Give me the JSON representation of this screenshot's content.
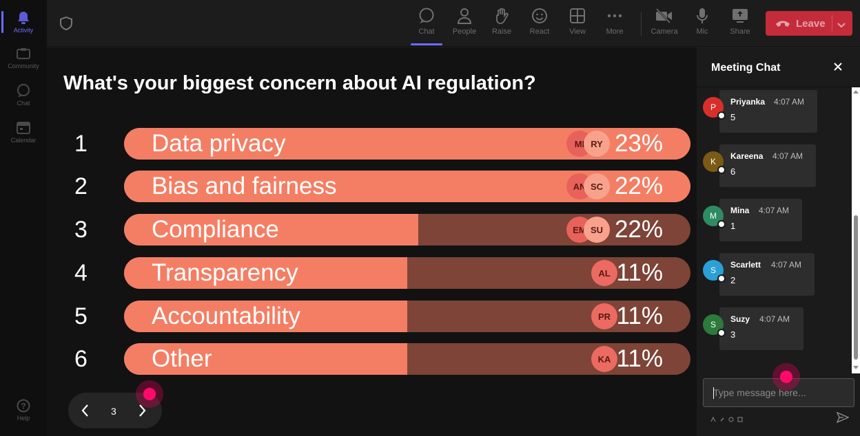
{
  "rail": {
    "items": [
      {
        "label": "Activity",
        "icon": "bell-icon",
        "active": true
      },
      {
        "label": "Community",
        "icon": "community-icon",
        "active": false
      },
      {
        "label": "Chat",
        "icon": "chat-icon",
        "active": false
      },
      {
        "label": "Calendar",
        "icon": "calendar-icon",
        "active": false
      }
    ],
    "help_label": "Help"
  },
  "toolbar": {
    "chat": "Chat",
    "people": "People",
    "raise": "Raise",
    "react": "React",
    "view": "View",
    "more": "More",
    "camera": "Camera",
    "mic": "Mic",
    "share": "Share",
    "leave": "Leave"
  },
  "poll": {
    "question": "What's your biggest concern about AI regulation?",
    "options": [
      {
        "num": "1",
        "label": "Data privacy",
        "pct": "23%",
        "fill": 1.0,
        "avatars": [
          "MI",
          "RY"
        ]
      },
      {
        "num": "2",
        "label": "Bias and fairness",
        "pct": "22%",
        "fill": 1.0,
        "avatars": [
          "AN",
          "SC"
        ]
      },
      {
        "num": "3",
        "label": "Compliance",
        "pct": "22%",
        "fill": 0.52,
        "avatars": [
          "EM",
          "SU"
        ]
      },
      {
        "num": "4",
        "label": "Transparency",
        "pct": "11%",
        "fill": 0.5,
        "avatars": [
          "AL"
        ]
      },
      {
        "num": "5",
        "label": "Accountability",
        "pct": "11%",
        "fill": 0.5,
        "avatars": [
          "PR"
        ]
      },
      {
        "num": "6",
        "label": "Other",
        "pct": "11%",
        "fill": 0.5,
        "avatars": [
          "KA"
        ]
      }
    ],
    "page": "3"
  },
  "chat": {
    "title": "Meeting Chat",
    "messages": [
      {
        "initial": "P",
        "name": "Priyanka",
        "time": "4:07 AM",
        "text": "5",
        "color": "#d92f2a"
      },
      {
        "initial": "K",
        "name": "Kareena",
        "time": "4:07 AM",
        "text": "6",
        "color": "#7a5a14"
      },
      {
        "initial": "M",
        "name": "Mina",
        "time": "4:07 AM",
        "text": "1",
        "color": "#2e8b63"
      },
      {
        "initial": "S",
        "name": "Scarlett",
        "time": "4:07 AM",
        "text": "2",
        "color": "#2a9fd8"
      },
      {
        "initial": "S",
        "name": "Suzy",
        "time": "4:07 AM",
        "text": "3",
        "color": "#2c7a3c"
      }
    ],
    "placeholder": "Type message here..."
  },
  "colors": {
    "accent": "#6c6cff",
    "bar_fill": "#f47e64",
    "bar_track": "#7d4437",
    "leave": "#c42b3b"
  }
}
